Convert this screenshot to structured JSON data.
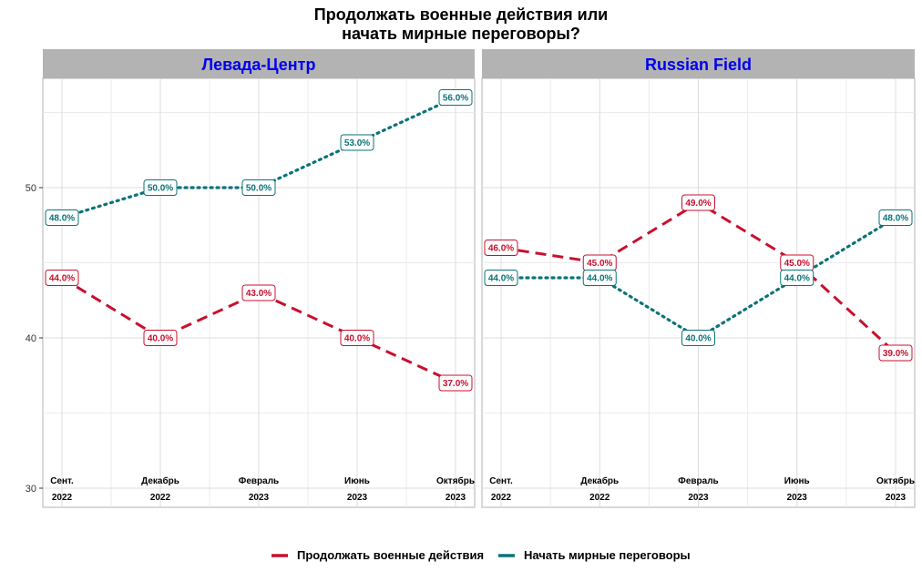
{
  "chart_data": {
    "type": "line",
    "title_line1": "Продолжать военные действия или",
    "title_line2": "начать мирные переговоры?",
    "ylim": [
      30,
      57.5
    ],
    "y_ticks": [
      30,
      40,
      50
    ],
    "grid": true,
    "legend_position": "bottom",
    "colors": {
      "continue": "#c8102e",
      "negotiate": "#0a7378",
      "strip_bg": "#b3b3b3",
      "strip_text": "#0000ee"
    },
    "series_names": [
      "Продолжать военные действия",
      "Начать мирные переговоры"
    ],
    "panels": [
      {
        "name": "Левада-Центр",
        "x": [
          {
            "month": "Сент.",
            "year": "2022"
          },
          {
            "month": "Декабрь",
            "year": "2022"
          },
          {
            "month": "Февраль",
            "year": "2023"
          },
          {
            "month": "Июнь",
            "year": "2023"
          },
          {
            "month": "Октябрь",
            "year": "2023"
          }
        ],
        "series": [
          {
            "key": "continue",
            "values": [
              44.0,
              40.0,
              43.0,
              40.0,
              37.0
            ],
            "labels": [
              "44.0%",
              "40.0%",
              "43.0%",
              "40.0%",
              "37.0%"
            ]
          },
          {
            "key": "negotiate",
            "values": [
              48.0,
              50.0,
              50.0,
              53.0,
              56.0
            ],
            "labels": [
              "48.0%",
              "50.0%",
              "50.0%",
              "53.0%",
              "56.0%"
            ]
          }
        ]
      },
      {
        "name": "Russian Field",
        "x": [
          {
            "month": "Сент.",
            "year": "2022"
          },
          {
            "month": "Декабрь",
            "year": "2022"
          },
          {
            "month": "Февраль",
            "year": "2023"
          },
          {
            "month": "Июнь",
            "year": "2023"
          },
          {
            "month": "Октябрь",
            "year": "2023"
          }
        ],
        "series": [
          {
            "key": "continue",
            "values": [
              46.0,
              45.0,
              49.0,
              45.0,
              39.0
            ],
            "labels": [
              "46.0%",
              "45.0%",
              "49.0%",
              "45.0%",
              "39.0%"
            ]
          },
          {
            "key": "negotiate",
            "values": [
              44.0,
              44.0,
              40.0,
              44.0,
              48.0
            ],
            "labels": [
              "44.0%",
              "44.0%",
              "40.0%",
              "44.0%",
              "48.0%"
            ]
          }
        ]
      }
    ]
  }
}
